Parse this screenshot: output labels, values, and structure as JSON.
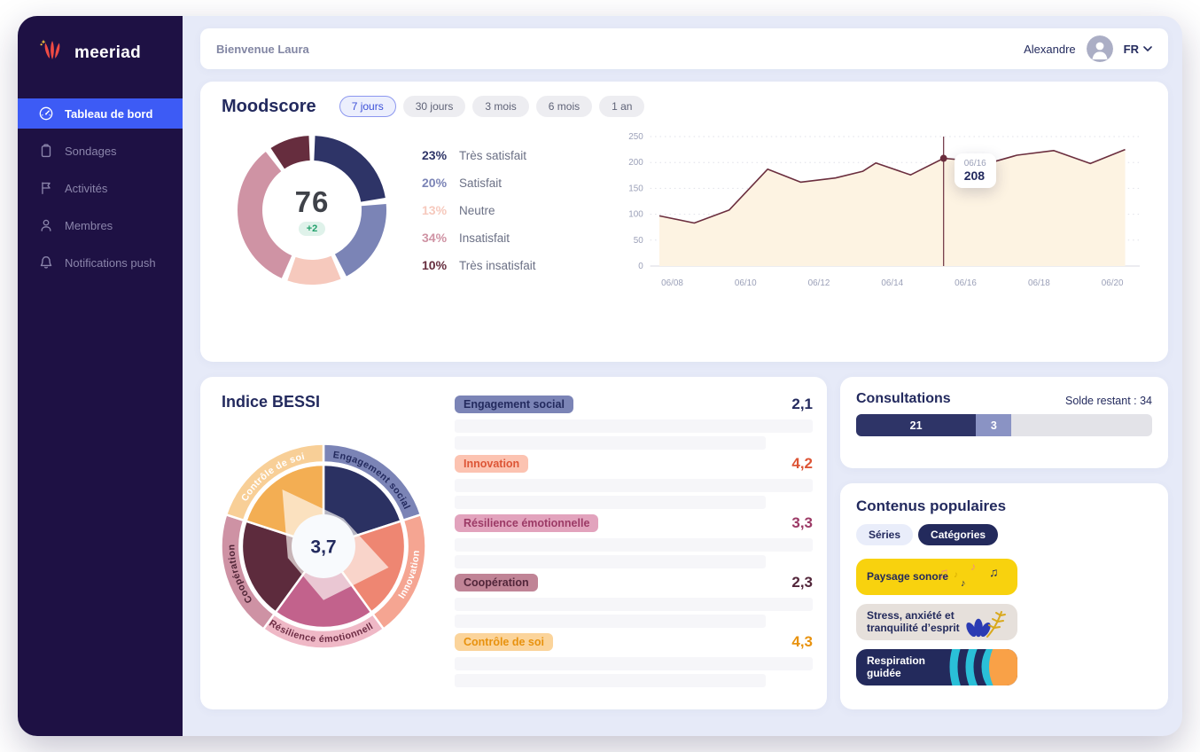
{
  "brand": {
    "name": "meeriad"
  },
  "topbar": {
    "welcome": "Bienvenue Laura",
    "user_name": "Alexandre",
    "language": "FR"
  },
  "sidebar": {
    "items": [
      {
        "label": "Tableau de bord",
        "icon": "gauge-icon",
        "active": true
      },
      {
        "label": "Sondages",
        "icon": "clipboard-icon",
        "active": false
      },
      {
        "label": "Activités",
        "icon": "flag-icon",
        "active": false
      },
      {
        "label": "Membres",
        "icon": "user-icon",
        "active": false
      },
      {
        "label": "Notifications push",
        "icon": "bell-icon",
        "active": false
      }
    ]
  },
  "moodscore": {
    "title": "Moodscore",
    "filters": [
      {
        "label": "7 jours",
        "active": true
      },
      {
        "label": "30 jours",
        "active": false
      },
      {
        "label": "3 mois",
        "active": false
      },
      {
        "label": "6 mois",
        "active": false
      },
      {
        "label": "1 an",
        "active": false
      }
    ],
    "score": "76",
    "delta": "+2",
    "legend": [
      {
        "pct": "23%",
        "label": "Très satisfait",
        "color": "#2e3467"
      },
      {
        "pct": "20%",
        "label": "Satisfait",
        "color": "#7b84b6"
      },
      {
        "pct": "13%",
        "label": "Neutre",
        "color": "#f6c9bd"
      },
      {
        "pct": "34%",
        "label": "Insatisfait",
        "color": "#cf93a4"
      },
      {
        "pct": "10%",
        "label": "Très insatisfait",
        "color": "#662d3e"
      }
    ]
  },
  "bessi": {
    "title": "Indice BESSI",
    "items": [
      {
        "label": "Engagement social",
        "value": "2,1",
        "pill_bg": "#7b84b6",
        "pill_text": "#232a5e",
        "value_color": "#232a5e"
      },
      {
        "label": "Innovation",
        "value": "4,2",
        "pill_bg": "#fcc3b1",
        "pill_text": "#dd5536",
        "value_color": "#dd5536"
      },
      {
        "label": "Résilience émotionnelle",
        "value": "3,3",
        "pill_bg": "#e2a3bd",
        "pill_text": "#9c3a66",
        "value_color": "#9c3a66"
      },
      {
        "label": "Coopération",
        "value": "2,3",
        "pill_bg": "#c08496",
        "pill_text": "#52263a",
        "value_color": "#52263a"
      },
      {
        "label": "Contrôle de soi",
        "value": "4,3",
        "pill_bg": "#fbd49b",
        "pill_text": "#e8920e",
        "value_color": "#e8920e"
      }
    ]
  },
  "consultations": {
    "title": "Consultations",
    "balance_label": "Solde restant : 34"
  },
  "contenus": {
    "title": "Contenus populaires",
    "tabs": [
      {
        "label": "Séries",
        "active": false
      },
      {
        "label": "Catégories",
        "active": true
      }
    ],
    "tiles": [
      {
        "label": "Paysage sonore",
        "bg": "#f8d20e",
        "text_color": "#232a5c",
        "decor": "music-notes"
      },
      {
        "label": "Stress, anxiété et tranquilité d’esprit",
        "bg": "#e6e0db",
        "text_color": "#232a5c",
        "decor": "leaves"
      },
      {
        "label": "Respiration guidée",
        "bg": "#232a5c",
        "text_color": "#ffffff",
        "decor": "breathing-waves"
      }
    ]
  },
  "chart_data": [
    {
      "id": "moodscore-donut",
      "type": "pie",
      "categories": [
        "Très satisfait",
        "Satisfait",
        "Neutre",
        "Insatisfait",
        "Très insatisfait"
      ],
      "values": [
        23,
        20,
        13,
        34,
        10
      ],
      "colors": [
        "#2e3467",
        "#7b84b6",
        "#f6c9bd",
        "#cf93a4",
        "#662d3e"
      ],
      "center_value": "76",
      "center_delta": "+2"
    },
    {
      "id": "moodscore-trend",
      "type": "area",
      "x_tick_days": [
        8,
        10,
        12,
        14,
        16,
        18,
        20
      ],
      "x_tick_labels": [
        "06/08",
        "06/10",
        "06/12",
        "06/14",
        "06/16",
        "06/18",
        "06/20"
      ],
      "x_range": [
        7.4,
        20.75
      ],
      "ylim": [
        0,
        250
      ],
      "y_ticks": [
        0,
        50,
        100,
        150,
        200,
        250
      ],
      "line_color": "#6b2e3e",
      "fill_color": "#fdf3e2",
      "points": [
        {
          "x": 7.65,
          "y": 97
        },
        {
          "x": 8.6,
          "y": 83
        },
        {
          "x": 9.55,
          "y": 108
        },
        {
          "x": 10.6,
          "y": 187
        },
        {
          "x": 11.5,
          "y": 162
        },
        {
          "x": 12.45,
          "y": 170
        },
        {
          "x": 13.2,
          "y": 183
        },
        {
          "x": 13.55,
          "y": 199
        },
        {
          "x": 14.5,
          "y": 176
        },
        {
          "x": 15.4,
          "y": 208
        },
        {
          "x": 16.7,
          "y": 200
        },
        {
          "x": 17.4,
          "y": 214
        },
        {
          "x": 18.4,
          "y": 223
        },
        {
          "x": 19.4,
          "y": 198
        },
        {
          "x": 20.35,
          "y": 225
        }
      ],
      "marker": {
        "x": 15.4,
        "y": 208,
        "tooltip_date": "06/16",
        "tooltip_value": "208"
      }
    },
    {
      "id": "bessi-radar",
      "type": "radar",
      "max": 5,
      "center_label": "3,7",
      "categories": [
        "Engagement social",
        "Innovation",
        "Résilience émotionnelle",
        "Coopération",
        "Contrôle de soi"
      ],
      "values": [
        2.1,
        4.2,
        3.3,
        2.3,
        4.3
      ],
      "ring_colors": [
        "#7b84b6",
        "#f5a592",
        "#efb8c6",
        "#ce92a4",
        "#f8cf97"
      ],
      "inner_colors": [
        "#2b3162",
        "#ee8672",
        "#c2628c",
        "#5d2b3d",
        "#f3ae53"
      ],
      "label_colors": [
        "#232a5e",
        "#ffffff",
        "#6d2c44",
        "#4f2436",
        "#ffffff"
      ]
    },
    {
      "id": "consultations-bar",
      "type": "bar",
      "stacked": true,
      "balance": 34,
      "segments": [
        {
          "label": "21",
          "value": 21,
          "color": "#2e3467",
          "width_pct": 40.5
        },
        {
          "label": "3",
          "value": 3,
          "color": "#8a93c4",
          "width_pct": 12
        }
      ],
      "track_color": "#e3e3e8"
    }
  ]
}
